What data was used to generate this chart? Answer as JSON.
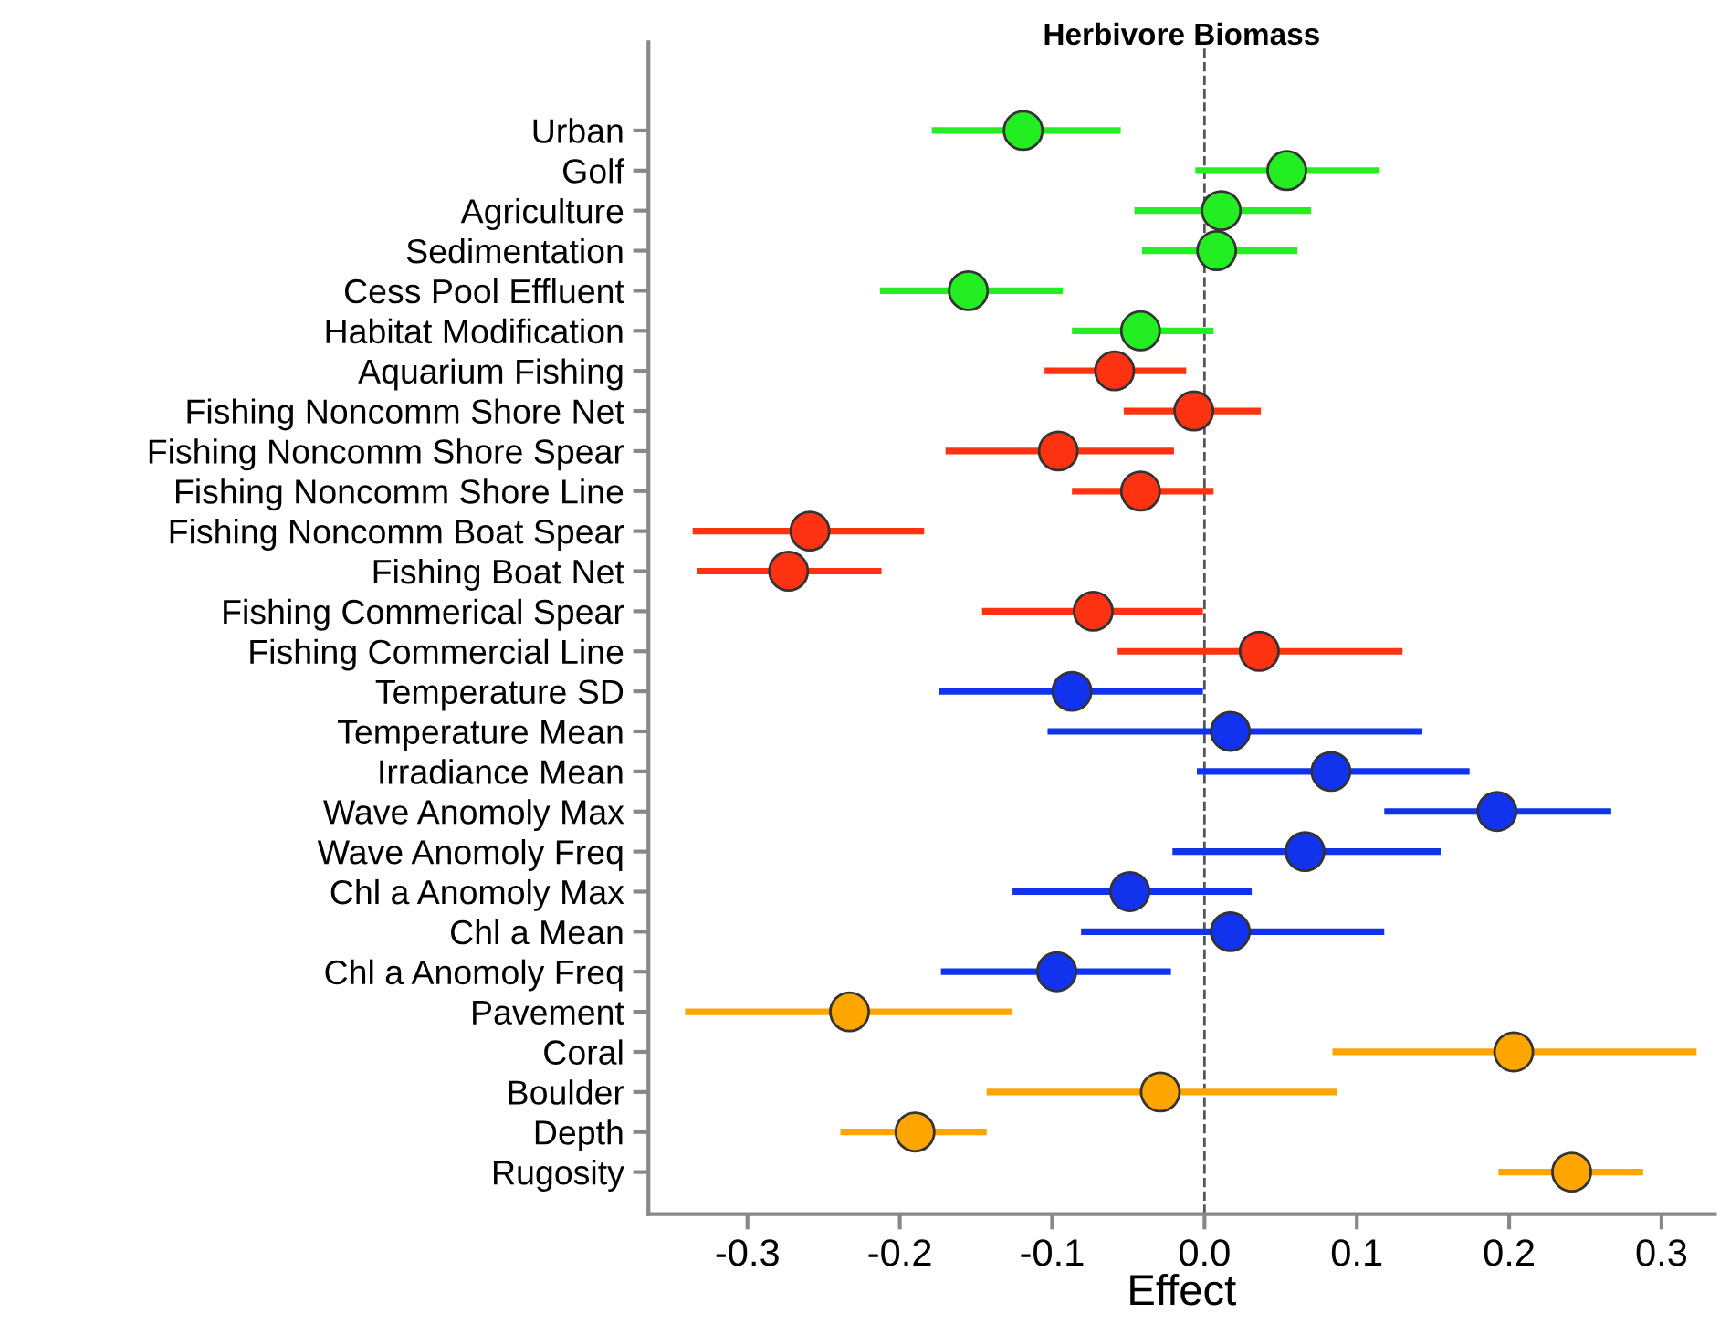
{
  "chart_data": {
    "type": "scatter",
    "orientation": "horizontal",
    "title": "Herbivore Biomass",
    "xlabel": "Effect",
    "categories": [
      "Urban",
      "Golf",
      "Agriculture",
      "Sedimentation",
      "Cess Pool Effluent",
      "Habitat Modification",
      "Aquarium Fishing",
      "Fishing Noncomm Shore Net",
      "Fishing Noncomm Shore Spear",
      "Fishing Noncomm Shore Line",
      "Fishing Noncomm Boat Spear",
      "Fishing Boat Net",
      "Fishing Commerical Spear",
      "Fishing Commercial Line",
      "Temperature SD",
      "Temperature Mean",
      "Irradiance Mean",
      "Wave Anomoly Max",
      "Wave Anomoly Freq",
      "Chl a Anomoly Max",
      "Chl a Mean",
      "Chl a Anomoly Freq",
      "Pavement",
      "Coral",
      "Boulder",
      "Depth",
      "Rugosity"
    ],
    "values": [
      -0.119,
      0.054,
      0.011,
      0.008,
      -0.155,
      -0.042,
      -0.059,
      -0.007,
      -0.096,
      -0.042,
      -0.259,
      -0.273,
      -0.073,
      0.036,
      -0.087,
      0.017,
      0.083,
      0.192,
      0.066,
      -0.049,
      0.017,
      -0.097,
      -0.233,
      0.203,
      -0.029,
      -0.19,
      0.241
    ],
    "errors": [
      [
        -0.179,
        -0.055
      ],
      [
        -0.006,
        0.115
      ],
      [
        -0.046,
        0.07
      ],
      [
        -0.041,
        0.061
      ],
      [
        -0.213,
        -0.093
      ],
      [
        -0.087,
        0.006
      ],
      [
        -0.105,
        -0.012
      ],
      [
        -0.053,
        0.037
      ],
      [
        -0.17,
        -0.02
      ],
      [
        -0.087,
        0.006
      ],
      [
        -0.336,
        -0.184
      ],
      [
        -0.333,
        -0.212
      ],
      [
        -0.146,
        -0.001
      ],
      [
        -0.057,
        0.13
      ],
      [
        -0.174,
        -0.001
      ],
      [
        -0.103,
        0.143
      ],
      [
        -0.005,
        0.174
      ],
      [
        0.118,
        0.267
      ],
      [
        -0.021,
        0.155
      ],
      [
        -0.126,
        0.031
      ],
      [
        -0.081,
        0.118
      ],
      [
        -0.173,
        -0.022
      ],
      [
        -0.341,
        -0.126
      ],
      [
        0.084,
        0.323
      ],
      [
        -0.143,
        0.087
      ],
      [
        -0.239,
        -0.143
      ],
      [
        0.193,
        0.288
      ]
    ],
    "colors": [
      "#22ee22",
      "#22ee22",
      "#22ee22",
      "#22ee22",
      "#22ee22",
      "#22ee22",
      "#ff3311",
      "#ff3311",
      "#ff3311",
      "#ff3311",
      "#ff3311",
      "#ff3311",
      "#ff3311",
      "#ff3311",
      "#1133ee",
      "#1133ee",
      "#1133ee",
      "#1133ee",
      "#1133ee",
      "#1133ee",
      "#1133ee",
      "#1133ee",
      "#ffa500",
      "#ffa500",
      "#ffa500",
      "#ffa500",
      "#ffa500"
    ],
    "xlim": [
      -0.365,
      0.335
    ],
    "xticks": [
      -0.3,
      -0.2,
      -0.1,
      {
        "value": 0,
        "label": "0.0"
      },
      0.1,
      0.2,
      0.3
    ],
    "ref_lines": [
      {
        "axis": "x",
        "value": 0,
        "label": null,
        "color": "#555555",
        "line_style": "dashed"
      }
    ],
    "marker": "circle",
    "grid": false,
    "legend": false
  }
}
